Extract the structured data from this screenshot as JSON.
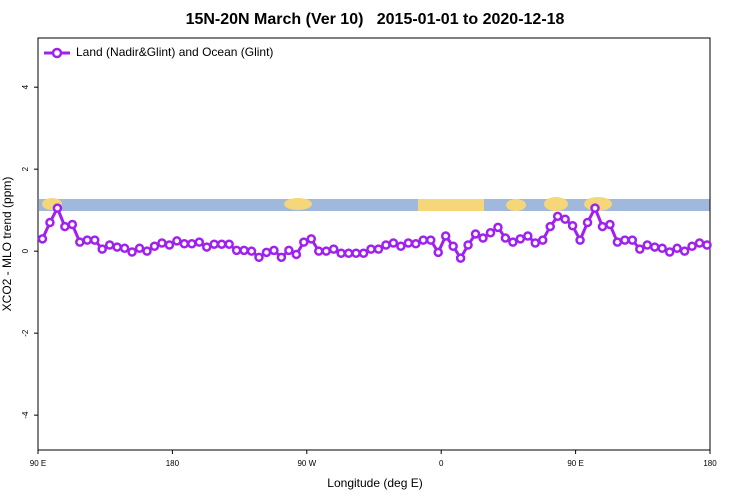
{
  "chart_data": {
    "type": "line",
    "title": "15N-20N March (Ver 10)   2015-01-01 to 2020-12-18",
    "x_label": "Longitude (deg E)",
    "y_label": "XCO2 - MLO trend (ppm)",
    "legend": "top-left",
    "xlim": [
      90,
      540
    ],
    "ylim": [
      -4.85,
      5.2
    ],
    "xticks": [
      {
        "value": 90,
        "label": "90 E"
      },
      180,
      {
        "value": 270,
        "label": "90 W"
      },
      {
        "value": 360,
        "label": "0"
      },
      {
        "value": 450,
        "label": "90 E"
      },
      {
        "value": 540,
        "label": "180"
      }
    ],
    "yticks": [
      -4,
      -2,
      0,
      2,
      4
    ],
    "x": [
      93,
      98,
      103,
      108,
      113,
      118,
      123,
      128,
      133,
      138,
      143,
      148,
      153,
      158,
      163,
      168,
      173,
      178,
      183,
      188,
      193,
      198,
      203,
      208,
      213,
      218,
      223,
      228,
      233,
      238,
      243,
      248,
      253,
      258,
      263,
      268,
      273,
      278,
      283,
      288,
      293,
      298,
      303,
      308,
      313,
      318,
      323,
      328,
      333,
      338,
      343,
      348,
      353,
      358,
      363,
      368,
      373,
      378,
      383,
      388,
      393,
      398,
      403,
      408,
      413,
      418,
      423,
      428,
      433,
      438,
      443,
      448,
      453,
      458,
      463,
      468,
      473,
      478,
      483,
      488,
      493,
      498,
      503,
      508,
      513,
      518,
      523,
      528,
      533,
      538
    ],
    "series": [
      {
        "name": "Land (Nadir&Glint) and Ocean (Glint)",
        "color": "#a020f0",
        "values": [
          0.3,
          0.7,
          1.05,
          0.6,
          0.65,
          0.22,
          0.27,
          0.27,
          0.05,
          0.15,
          0.1,
          0.07,
          -0.02,
          0.07,
          0,
          0.12,
          0.2,
          0.15,
          0.25,
          0.18,
          0.18,
          0.22,
          0.1,
          0.17,
          0.17,
          0.17,
          0.02,
          0.02,
          0,
          -0.15,
          -0.03,
          0.02,
          -0.15,
          0.02,
          -0.08,
          0.22,
          0.3,
          0,
          0,
          0.05,
          -0.05,
          -0.05,
          -0.05,
          -0.05,
          0.05,
          0.05,
          0.15,
          0.2,
          0.12,
          0.2,
          0.18,
          0.27,
          0.27,
          -0.03,
          0.37,
          0.12,
          -0.17,
          0.15,
          0.42,
          0.32,
          0.45,
          0.58,
          0.32,
          0.22,
          0.3,
          0.37,
          0.2,
          0.27,
          0.6,
          0.85,
          0.78,
          0.62,
          0.27,
          0.7,
          1.05,
          0.6,
          0.65,
          0.22,
          0.27,
          0.27,
          0.05,
          0.15,
          0.1,
          0.07,
          -0.02,
          0.07,
          0,
          0.12,
          0.2,
          0.15
        ]
      }
    ]
  }
}
